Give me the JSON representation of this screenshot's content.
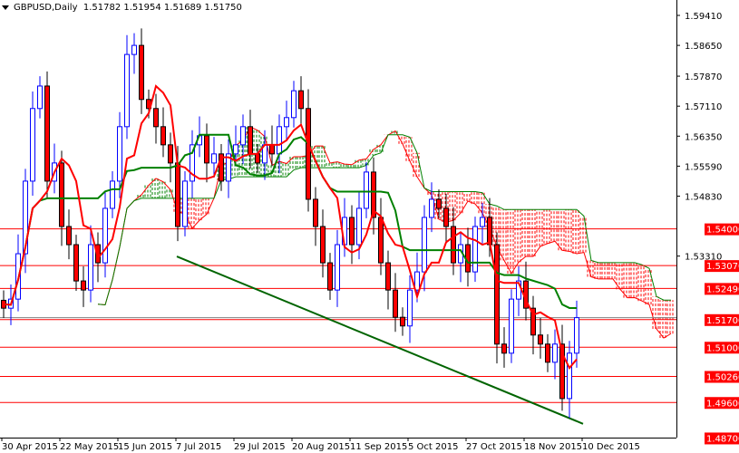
{
  "header": {
    "symbol": "GBPUSD,Daily",
    "ohlc": "1.51782 1.51954 1.51689 1.51750"
  },
  "colors": {
    "bull": "#0000ff",
    "bear": "#ff0000",
    "tenkan": "#ff0000",
    "kijun": "#008000",
    "cloud_bull": "#008000",
    "cloud_bear": "#ff0000",
    "level": "#ff0000",
    "trendline": "#006400",
    "current": "#808080"
  },
  "chart_data": {
    "type": "candlestick",
    "indicator": "Ichimoku Kinko Hyo",
    "closes": [
      1.5199,
      1.5222,
      1.5337,
      1.5521,
      1.5705,
      1.5762,
      1.5521,
      1.5567,
      1.5406,
      1.536,
      1.5268,
      1.5245,
      1.536,
      1.5314,
      1.5452,
      1.5521,
      1.5659,
      1.5842,
      1.5865,
      1.5728,
      1.5705,
      1.5659,
      1.5613,
      1.5567,
      1.5406,
      1.5521,
      1.5613,
      1.5636,
      1.5567,
      1.559,
      1.5521,
      1.559,
      1.5613,
      1.5659,
      1.559,
      1.5567,
      1.5613,
      1.559,
      1.5659,
      1.5682,
      1.575,
      1.5705,
      1.5475,
      1.5406,
      1.5314,
      1.5245,
      1.536,
      1.5429,
      1.536,
      1.5452,
      1.5544,
      1.5429,
      1.5314,
      1.5245,
      1.5176,
      1.5154,
      1.5245,
      1.5291,
      1.5429,
      1.5475,
      1.5452,
      1.5406,
      1.5314,
      1.536,
      1.5291,
      1.5406,
      1.5429,
      1.536,
      1.5108,
      1.5085,
      1.5222,
      1.5268,
      1.5199,
      1.5131,
      1.5108,
      1.5062,
      1.5108,
      1.497,
      1.5085,
      1.5175
    ],
    "x_ticks": [
      "30 Apr 2015",
      "22 May 2015",
      "15 Jun 2015",
      "7 Jul 2015",
      "29 Jul 2015",
      "20 Aug 2015",
      "11 Sep 2015",
      "5 Oct 2015",
      "27 Oct 2015",
      "18 Nov 2015",
      "10 Dec 2015"
    ],
    "y_ticks": [
      "1.59410",
      "1.58650",
      "1.57870",
      "1.57110",
      "1.56350",
      "1.55590",
      "1.54830",
      "1.53310"
    ],
    "ylim": [
      1.487,
      1.598
    ],
    "levels": [
      {
        "price": 1.54,
        "label": "1.54000"
      },
      {
        "price": 1.5307,
        "label": "1.53070"
      },
      {
        "price": 1.5249,
        "label": "1.52490"
      },
      {
        "price": 1.517,
        "label": "1.51700"
      },
      {
        "price": 1.51,
        "label": "1.51000"
      },
      {
        "price": 1.5026,
        "label": "1.50260"
      },
      {
        "price": 1.496,
        "label": "1.49600"
      },
      {
        "price": 1.487,
        "label": "1.48700"
      }
    ],
    "current_price": 1.5175,
    "trendline": [
      {
        "date": "7 Jul 2015",
        "price": 1.533
      },
      {
        "date": "10 Dec 2015",
        "price": 1.4906
      }
    ]
  }
}
